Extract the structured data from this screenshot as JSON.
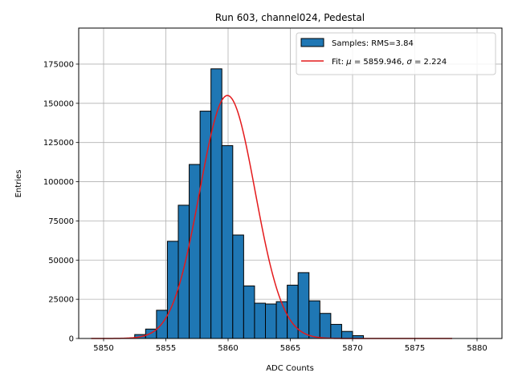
{
  "chart_data": {
    "type": "bar",
    "title": "Run 603, channel024, Pedestal",
    "xlabel": "ADC Counts",
    "ylabel": "Entries",
    "xlim": [
      5848,
      5882
    ],
    "ylim": [
      0,
      198000
    ],
    "xticks": [
      5850,
      5855,
      5860,
      5865,
      5870,
      5875,
      5880
    ],
    "yticks": [
      0,
      25000,
      50000,
      75000,
      100000,
      125000,
      150000,
      175000
    ],
    "grid": true,
    "legend_position": "top-right",
    "legend": {
      "histogram_label": "Samples: RMS=3.84",
      "fit_label_prefix": "Fit: ",
      "fit_mu_symbol": "μ",
      "fit_mu_value": " = 5859.946, ",
      "fit_sigma_symbol": "σ",
      "fit_sigma_value": " = 2.224"
    },
    "colors": {
      "bar_fill": "#1f77b4",
      "bar_edge": "#000000",
      "fit_line": "#e41a1c",
      "grid": "#b0b0b0"
    },
    "histogram": {
      "bin_width": 0.875,
      "bin_start": 5852.5,
      "values": [
        2500,
        6000,
        18000,
        62000,
        85000,
        111000,
        145000,
        172000,
        123000,
        66000,
        33500,
        22500,
        22000,
        23500,
        34000,
        42000,
        24000,
        16000,
        9000,
        4500,
        1800
      ]
    },
    "fit": {
      "type": "gaussian",
      "mu": 5859.946,
      "sigma": 2.224,
      "amplitude": 155000,
      "x_range": [
        5849,
        5878
      ]
    }
  }
}
